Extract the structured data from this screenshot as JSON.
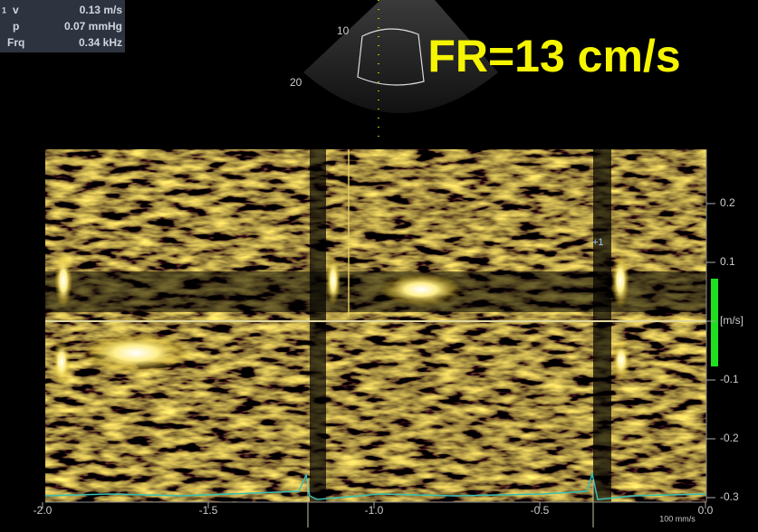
{
  "readout": {
    "index": "1",
    "rows": [
      {
        "label": "v",
        "value": "0.13 m/s"
      },
      {
        "label": "p",
        "value": "0.07 mmHg"
      },
      {
        "label": "Frq",
        "value": "0.34 kHz"
      }
    ]
  },
  "annotation": "FR=13 cm/s",
  "sector_depth_labels": [
    "10",
    "20"
  ],
  "cursor_label": "+1",
  "time_axis": {
    "ticks": [
      "-2.0",
      "-1.5",
      "-1.0",
      "-0.5",
      "0.0"
    ]
  },
  "velocity_axis": {
    "ticks": [
      "0.2",
      "0.1",
      "[m/s]",
      "-0.1",
      "-0.2",
      "-0.3"
    ]
  },
  "sweep_speed": "100 mm/s"
}
